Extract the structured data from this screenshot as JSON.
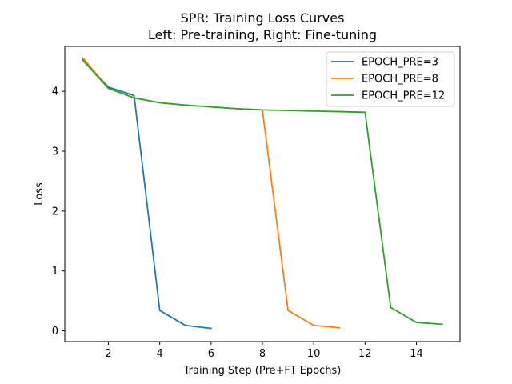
{
  "chart_data": {
    "type": "line",
    "title": "SPR: Training Loss Curves",
    "subtitle": "Left: Pre-training, Right: Fine-tuning",
    "xlabel": "Training Step (Pre+FT Epochs)",
    "ylabel": "Loss",
    "xlim": [
      0.3,
      15.7
    ],
    "ylim": [
      -0.18,
      4.75
    ],
    "xticks": [
      2,
      4,
      6,
      8,
      10,
      12,
      14
    ],
    "yticks": [
      0,
      1,
      2,
      3,
      4
    ],
    "grid": false,
    "legend_position": "top-right",
    "series": [
      {
        "name": "EPOCH_PRE=3",
        "color": "#1f77b4",
        "x": [
          1,
          2,
          3,
          4,
          5,
          6
        ],
        "y": [
          4.53,
          4.07,
          3.93,
          0.34,
          0.09,
          0.04
        ]
      },
      {
        "name": "EPOCH_PRE=8",
        "color": "#ff7f0e",
        "x": [
          1,
          2,
          3,
          4,
          5,
          6,
          7,
          8,
          9,
          10,
          11
        ],
        "y": [
          4.56,
          4.05,
          3.89,
          3.81,
          3.77,
          3.74,
          3.71,
          3.69,
          0.34,
          0.09,
          0.05
        ]
      },
      {
        "name": "EPOCH_PRE=12",
        "color": "#2ca02c",
        "x": [
          1,
          2,
          3,
          4,
          5,
          6,
          7,
          8,
          9,
          10,
          11,
          12,
          13,
          14,
          15
        ],
        "y": [
          4.52,
          4.05,
          3.89,
          3.81,
          3.77,
          3.74,
          3.71,
          3.69,
          3.68,
          3.67,
          3.66,
          3.65,
          0.39,
          0.14,
          0.11
        ]
      }
    ]
  }
}
